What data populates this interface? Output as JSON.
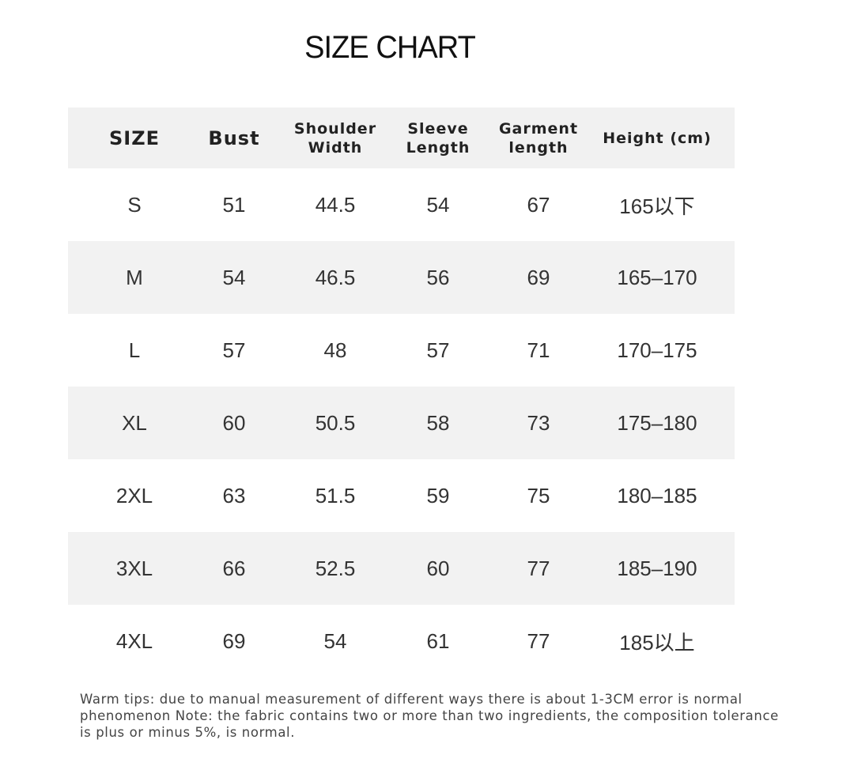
{
  "title": "SIZE CHART",
  "headers": [
    "SIZE",
    "Bust",
    "Shoulder\nWidth",
    "Sleeve\nLength",
    "Garment\nlength",
    "Height (cm)"
  ],
  "rows": [
    [
      "S",
      "51",
      "44.5",
      "54",
      "67",
      "165以下"
    ],
    [
      "M",
      "54",
      "46.5",
      "56",
      "69",
      "165–170"
    ],
    [
      "L",
      "57",
      "48",
      "57",
      "71",
      "170–175"
    ],
    [
      "XL",
      "60",
      "50.5",
      "58",
      "73",
      "175–180"
    ],
    [
      "2XL",
      "63",
      "51.5",
      "59",
      "75",
      "180–185"
    ],
    [
      "3XL",
      "66",
      "52.5",
      "60",
      "77",
      "185–190"
    ],
    [
      "4XL",
      "69",
      "54",
      "61",
      "77",
      "185以上"
    ]
  ],
  "note": "Warm tips: due to manual measurement of different ways there is about 1-3CM error is normal phenomenon Note: the fabric contains two or more than two ingredients, the composition tolerance is plus or minus 5%, is normal.",
  "colors": {
    "stripe": "#f2f2f2",
    "text": "#333333"
  }
}
